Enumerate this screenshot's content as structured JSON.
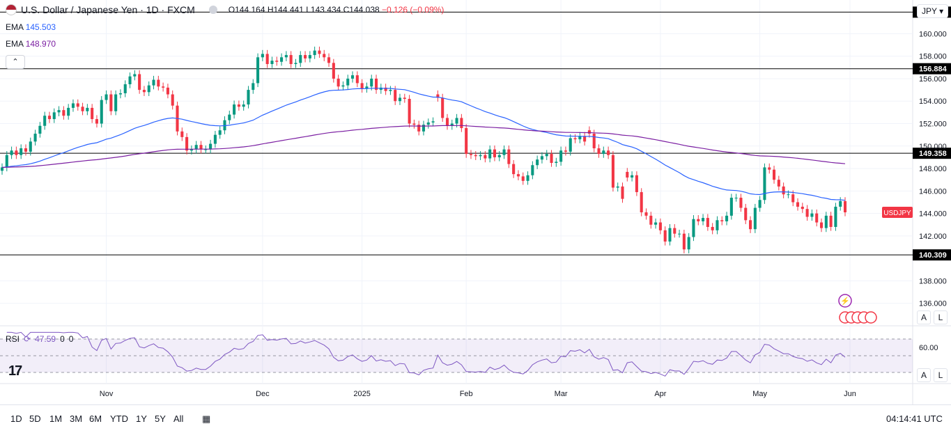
{
  "header": {
    "symbol": "U.S. Dollar / Japanese Yen · 1D · FXCM",
    "open": "O144.164",
    "high": "H144.441",
    "low": "L143.434",
    "close": "C144.038",
    "change": "−0.126 (−0.09%)"
  },
  "ema_fast": {
    "label": "EMA",
    "value": "145.503",
    "color": "#2962ff"
  },
  "ema_slow": {
    "label": "EMA",
    "value": "148.970",
    "color": "#7b1fa2"
  },
  "collapse_icon": "chevron-up-icon",
  "currency": "JPY",
  "auto_label": "A",
  "log_label": "L",
  "rsi": {
    "label": "RSI",
    "value": "47.59",
    "extra1": "0",
    "extra2": "0",
    "axis_label": "60.00"
  },
  "price_tag": {
    "label": "USDJPY",
    "color": "#f23645"
  },
  "timeframes": [
    "1D",
    "5D",
    "1M",
    "3M",
    "6M",
    "YTD",
    "1Y",
    "5Y",
    "All"
  ],
  "clock": "04:14:41 UTC",
  "chart_data": {
    "type": "candlestick",
    "title": "U.S. Dollar / Japanese Yen · 1D · FXCM",
    "ylim": [
      134,
      163
    ],
    "y_ticks": [
      "136.000",
      "138.000",
      "142.000",
      "144.000",
      "146.000",
      "148.000",
      "150.000",
      "152.000",
      "154.000",
      "156.000",
      "158.000",
      "160.000"
    ],
    "x_ticks": [
      "Nov",
      "Dec",
      "2025",
      "Feb",
      "Mar",
      "Apr",
      "May",
      "Jun"
    ],
    "horizontal_levels": [
      "161.920",
      "156.884",
      "149.358",
      "140.309"
    ],
    "closes": [
      148.1,
      149.2,
      149.6,
      149.2,
      149.8,
      149.5,
      150.4,
      151.1,
      151.8,
      152.7,
      152.4,
      153.0,
      153.2,
      152.7,
      153.4,
      153.8,
      153.5,
      153.1,
      153.4,
      152.4,
      152.0,
      154.1,
      154.6,
      153.1,
      154.6,
      154.7,
      155.5,
      156.2,
      156.4,
      155.0,
      154.8,
      155.4,
      155.9,
      155.3,
      155.2,
      154.6,
      153.6,
      151.3,
      150.8,
      149.6,
      149.7,
      150.1,
      149.7,
      149.7,
      150.2,
      151.0,
      151.4,
      152.3,
      152.8,
      153.7,
      153.5,
      153.7,
      155.0,
      155.6,
      157.9,
      158.2,
      157.3,
      157.6,
      157.5,
      157.9,
      158.1,
      157.3,
      157.4,
      158.1,
      157.8,
      158.1,
      158.5,
      158.2,
      157.9,
      157.4,
      156.0,
      155.3,
      155.4,
      156.0,
      156.3,
      155.6,
      155.1,
      155.3,
      156.0,
      155.0,
      155.2,
      154.9,
      155.0,
      154.0,
      154.3,
      154.2,
      152.0,
      151.9,
      151.3,
      151.9,
      152.1,
      152.2,
      154.3,
      152.5,
      151.8,
      152.0,
      152.5,
      151.6,
      149.3,
      149.2,
      149.1,
      149.2,
      148.9,
      149.7,
      149.0,
      149.2,
      149.7,
      148.4,
      147.5,
      147.3,
      146.9,
      147.4,
      148.3,
      148.8,
      149.1,
      149.3,
      148.5,
      148.6,
      149.6,
      149.5,
      150.7,
      150.6,
      150.9,
      150.4,
      151.1,
      149.8,
      149.3,
      149.6,
      149.2,
      146.3,
      146.4,
      145.3,
      147.2,
      147.4,
      145.9,
      144.1,
      143.8,
      143.0,
      143.2,
      142.5,
      141.5,
      142.7,
      142.2,
      142.2,
      140.8,
      141.9,
      143.5,
      143.3,
      143.6,
      142.8,
      142.5,
      143.4,
      143.3,
      143.8,
      145.4,
      145.4,
      144.5,
      143.4,
      142.6,
      144.5,
      145.2,
      148.1,
      147.9,
      147.0,
      146.4,
      145.7,
      145.7,
      145.0,
      144.6,
      144.4,
      143.7,
      144.0,
      143.2,
      142.7,
      143.8,
      142.8,
      144.6,
      145.1,
      144.1
    ],
    "opens": [
      147.8,
      148.1,
      149.2,
      149.6,
      149.2,
      149.8,
      149.5,
      150.4,
      151.1,
      151.8,
      152.7,
      152.4,
      153.0,
      153.2,
      152.7,
      153.4,
      153.8,
      153.5,
      153.1,
      153.4,
      152.4,
      152.0,
      154.1,
      154.6,
      153.1,
      154.6,
      154.7,
      155.5,
      156.2,
      156.4,
      155.0,
      154.8,
      155.4,
      155.9,
      155.3,
      155.2,
      154.6,
      153.6,
      151.3,
      150.8,
      149.6,
      149.7,
      150.1,
      149.7,
      149.7,
      150.2,
      151.0,
      151.4,
      152.3,
      152.8,
      153.7,
      153.5,
      153.7,
      155.0,
      155.6,
      157.9,
      158.2,
      157.3,
      157.6,
      157.5,
      157.9,
      158.1,
      157.3,
      157.4,
      158.1,
      157.8,
      158.1,
      158.5,
      158.2,
      157.9,
      157.4,
      156.0,
      155.3,
      155.4,
      156.0,
      156.3,
      155.6,
      155.1,
      155.3,
      156.0,
      155.0,
      155.2,
      154.9,
      155.0,
      154.0,
      154.3,
      154.2,
      152.0,
      151.9,
      151.3,
      151.9,
      152.1,
      154.6,
      154.3,
      152.5,
      151.8,
      152.0,
      152.5,
      151.6,
      149.3,
      149.2,
      149.1,
      149.2,
      148.9,
      149.7,
      149.0,
      149.2,
      149.7,
      148.4,
      147.5,
      147.3,
      146.9,
      147.4,
      148.3,
      148.8,
      149.1,
      149.3,
      148.5,
      148.6,
      149.6,
      149.5,
      150.7,
      150.6,
      150.9,
      151.4,
      151.1,
      149.8,
      149.3,
      149.6,
      149.2,
      146.3,
      146.4,
      147.7,
      147.2,
      147.4,
      145.9,
      144.1,
      143.8,
      143.0,
      143.2,
      142.5,
      141.5,
      142.7,
      142.2,
      142.2,
      140.8,
      141.9,
      143.5,
      143.3,
      143.6,
      142.8,
      142.5,
      143.4,
      143.3,
      143.8,
      145.4,
      145.4,
      144.5,
      143.4,
      142.6,
      144.5,
      145.2,
      148.1,
      147.9,
      147.0,
      146.4,
      145.7,
      145.7,
      145.0,
      144.6,
      144.4,
      143.7,
      144.0,
      143.2,
      142.7,
      143.8,
      142.8,
      144.6,
      145.1
    ]
  }
}
